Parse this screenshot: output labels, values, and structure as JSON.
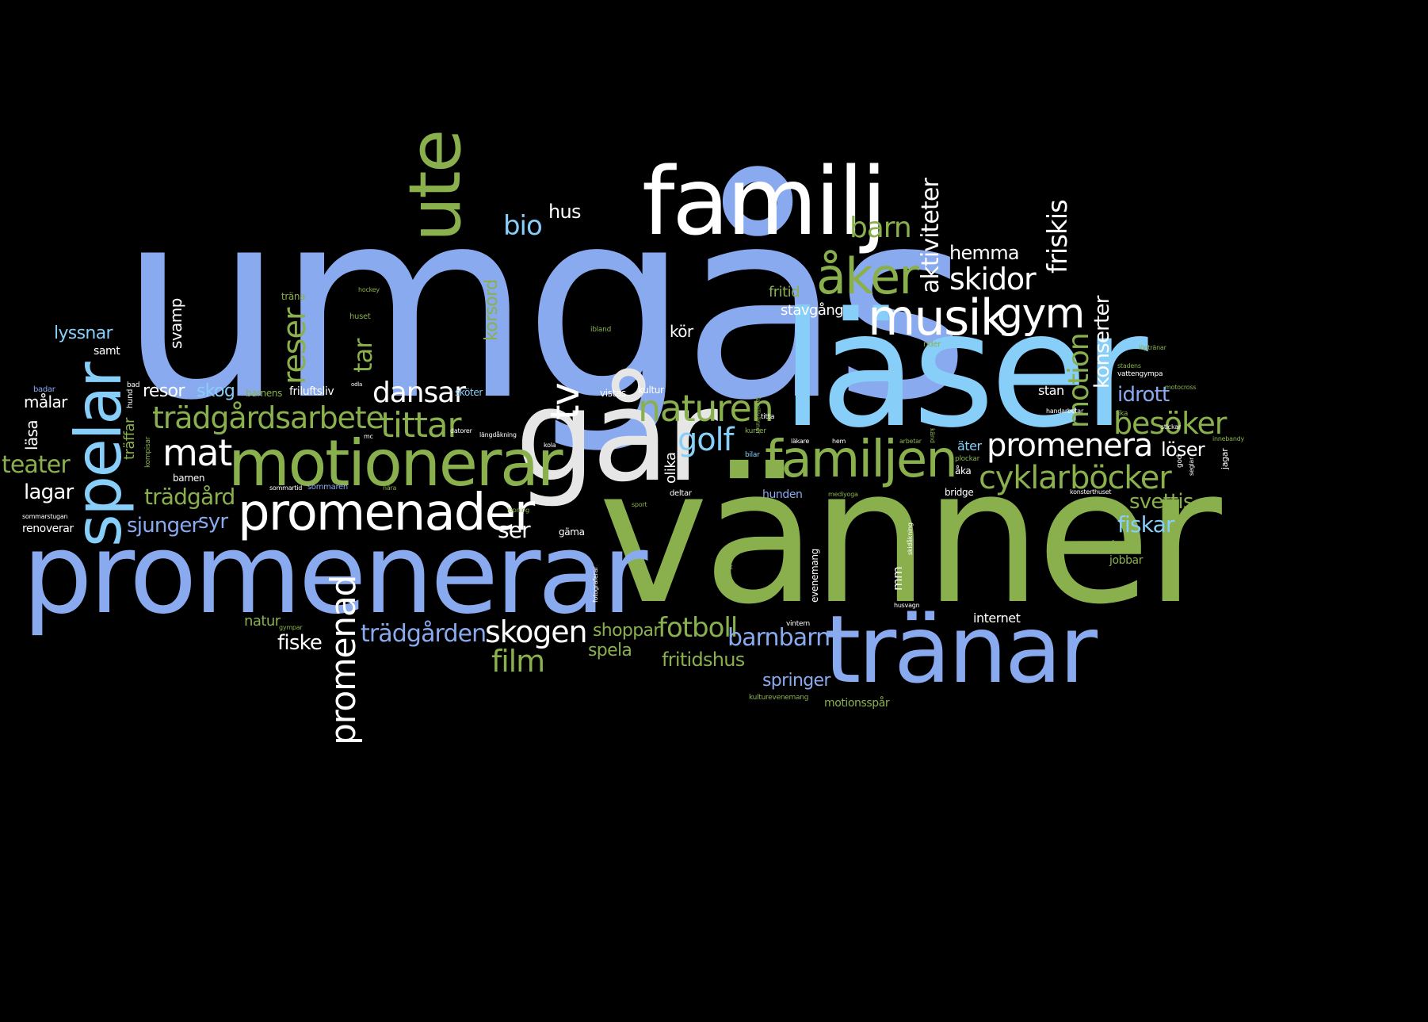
{
  "colors": {
    "background": "#000000",
    "blue": "#8aaaf0",
    "light_blue": "#87cef8",
    "green": "#8ab04e",
    "white": "#ffffff",
    "gray": "#e6e6e6"
  },
  "words": [
    "umgås",
    "vänner",
    "promenerar",
    "läser",
    "går",
    "familj",
    "tränar",
    "ute",
    "motionerar",
    "promenader",
    "spelar",
    "familjen",
    "musik",
    "åker",
    "gym",
    "naturen",
    "trädgårdsarbete",
    "mat",
    "tittar",
    "dansar",
    "cyklar",
    "böcker",
    "promenera",
    "besöker",
    "skogen",
    "trädgården",
    "fotboll",
    "barnbarn",
    "film",
    "promenad",
    "golf",
    "tv",
    "bio",
    "hus",
    "barn",
    "aktiviteter",
    "skidor",
    "hemma",
    "friskis",
    "motion",
    "konserter",
    "reser",
    "tar",
    "korsord",
    "svamp",
    "lyssnar",
    "teater",
    "läsa",
    "målar",
    "lagar",
    "trädgård",
    "sjunger",
    "syr",
    "resor",
    "skog",
    "friluftsliv",
    "barnens",
    "ser",
    "fiske",
    "natur",
    "shoppar",
    "spela",
    "fritidshus",
    "springer",
    "motionsspår",
    "idrott",
    "stan",
    "svettis",
    "fiskar",
    "löser",
    "äter",
    "pysslar",
    "jobbar",
    "internet",
    "stavgång",
    "fritid",
    "kör",
    "träffar",
    "olika",
    "hunden",
    "bridge",
    "åka",
    "mm",
    "evenemang",
    "renoverar",
    "samt",
    "bad",
    "hund",
    "badar",
    "kultur",
    "vistas",
    "sköter",
    "titta",
    "kurser",
    "bilar",
    "hem",
    "arbetar",
    "deltar",
    "plockar",
    "sommaren",
    "gäma",
    "barnen",
    "kompisar",
    "träna",
    "hockey",
    "huset",
    "ibland",
    "rider",
    "vattengympa",
    "fika",
    "god",
    "jagar",
    "sommarstugan",
    "sommartid",
    "nära",
    "löpning",
    "sport",
    "konsterthuset",
    "fotograferar",
    "lugnt",
    "husvagn",
    "vintern",
    "kulturevenemang",
    "gympar",
    "mc",
    "datorer",
    "promenera",
    "motocross",
    "löptränar",
    "stadens",
    "handarbetar",
    "innebandy",
    "stickar",
    "seglar",
    "cyklar",
    "läkare",
    "mediyoga",
    "längdåkning",
    "skidåkning",
    "familjvänner",
    "arbete",
    "strövar",
    "styrketränar",
    "odla",
    "känd",
    "beds",
    "kola",
    "meditation",
    "se"
  ]
}
